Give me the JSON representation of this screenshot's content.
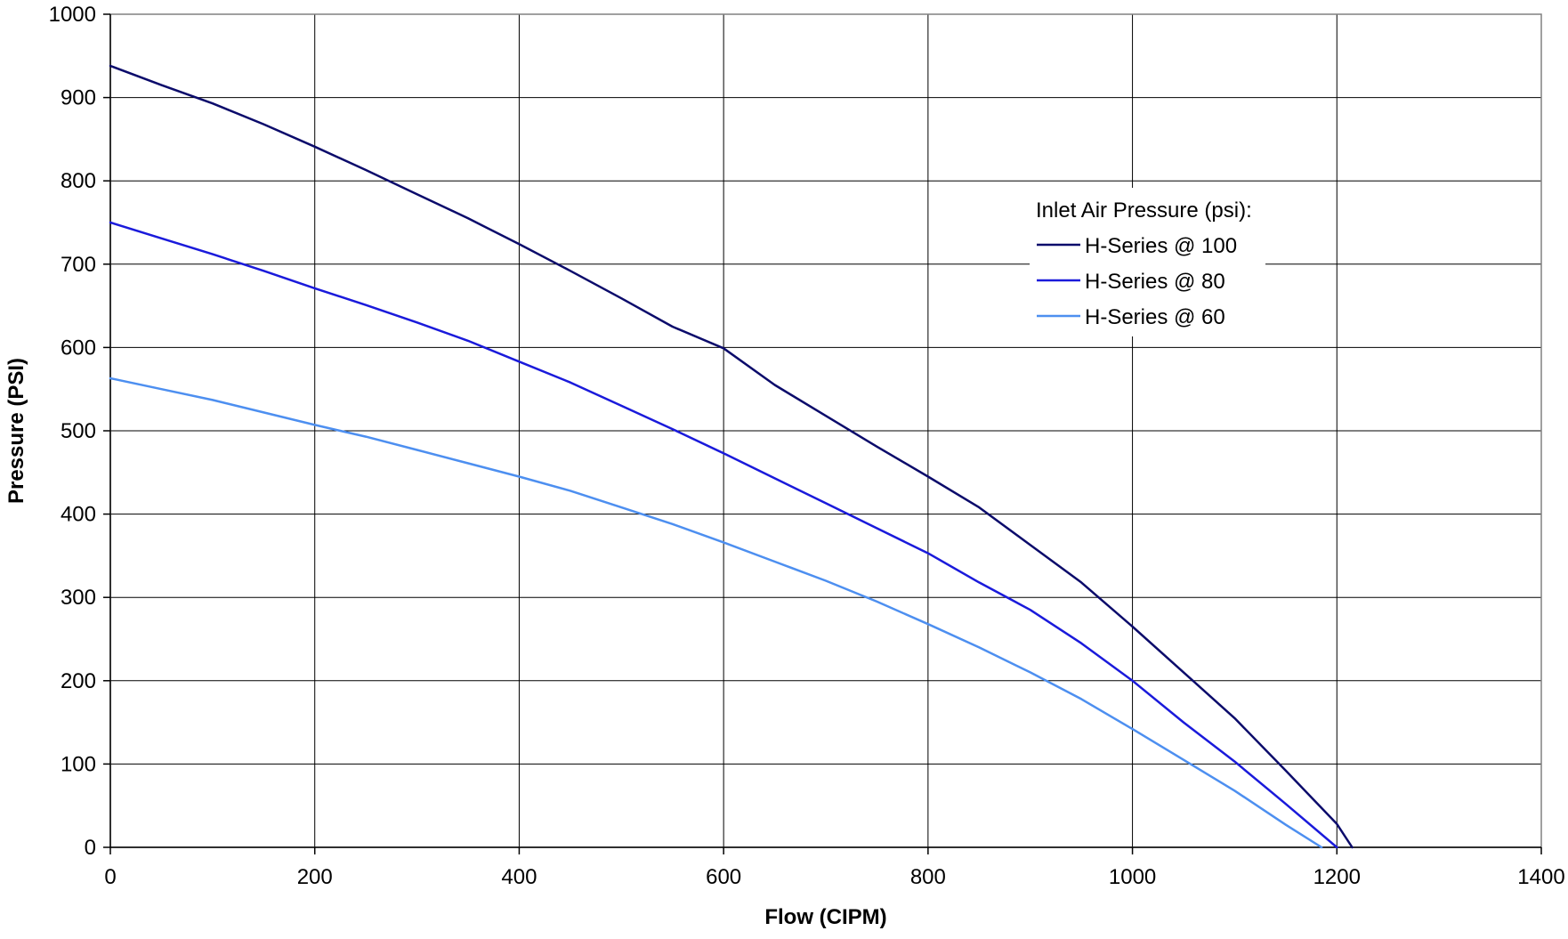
{
  "chart_data": {
    "type": "line",
    "xlabel": "Flow (CIPM)",
    "ylabel": "Pressure (PSI)",
    "xlim": [
      0,
      1400
    ],
    "ylim": [
      0,
      1000
    ],
    "xticks": [
      0,
      200,
      400,
      600,
      800,
      1000,
      1200,
      1400
    ],
    "yticks": [
      0,
      100,
      200,
      300,
      400,
      500,
      600,
      700,
      800,
      900,
      1000
    ],
    "x_tick_labels": [
      "0",
      "200",
      "400",
      "600",
      "800",
      "1000",
      "1200",
      "1400"
    ],
    "y_tick_labels": [
      "0",
      "100",
      "200",
      "300",
      "400",
      "500",
      "600",
      "700",
      "800",
      "900",
      "1000"
    ],
    "grid": true,
    "legend": {
      "title": "Inlet Air Pressure (psi):",
      "position": "upper-right-inside"
    },
    "series": [
      {
        "name": "H-Series @ 100",
        "color": "#0b0b6b",
        "x": [
          0,
          50,
          100,
          150,
          200,
          250,
          300,
          350,
          400,
          450,
          500,
          550,
          600,
          650,
          700,
          750,
          800,
          850,
          900,
          950,
          1000,
          1050,
          1100,
          1150,
          1200,
          1215
        ],
        "y": [
          938,
          915,
          893,
          868,
          841,
          813,
          784,
          755,
          724,
          692,
          659,
          625,
          599,
          555,
          518,
          481,
          445,
          408,
          363,
          318,
          265,
          210,
          155,
          92,
          28,
          0
        ]
      },
      {
        "name": "H-Series @ 80",
        "color": "#1a1adb",
        "x": [
          0,
          50,
          100,
          150,
          200,
          250,
          300,
          350,
          400,
          450,
          500,
          550,
          600,
          650,
          700,
          750,
          800,
          850,
          900,
          950,
          1000,
          1050,
          1100,
          1150,
          1200
        ],
        "y": [
          750,
          731,
          712,
          692,
          671,
          651,
          630,
          608,
          583,
          558,
          530,
          502,
          473,
          443,
          413,
          383,
          353,
          318,
          285,
          245,
          200,
          150,
          103,
          52,
          0
        ]
      },
      {
        "name": "H-Series @ 60",
        "color": "#4d8ff0",
        "x": [
          0,
          50,
          100,
          150,
          200,
          250,
          300,
          350,
          400,
          450,
          500,
          550,
          600,
          650,
          700,
          750,
          800,
          850,
          900,
          950,
          1000,
          1050,
          1100,
          1150,
          1185
        ],
        "y": [
          563,
          550,
          537,
          522,
          507,
          493,
          477,
          461,
          445,
          428,
          408,
          388,
          366,
          343,
          320,
          295,
          268,
          240,
          210,
          178,
          142,
          105,
          68,
          27,
          0
        ]
      }
    ]
  }
}
